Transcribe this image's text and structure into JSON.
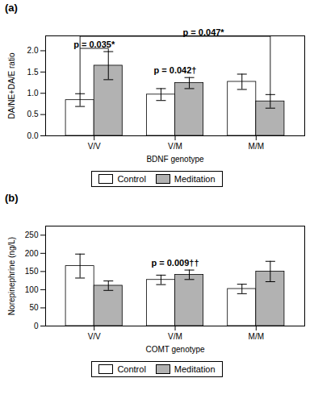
{
  "chart_data": [
    {
      "type": "bar",
      "title": "(a)",
      "xlabel": "BDNF genotype",
      "ylabel": "DA/NE+DA/E ratio",
      "categories": [
        "V/V",
        "V/M",
        "M/M"
      ],
      "series": [
        {
          "name": "Control",
          "color": "#ffffff",
          "values": [
            0.84,
            0.97,
            1.27
          ],
          "errors": [
            0.15,
            0.14,
            0.18
          ]
        },
        {
          "name": "Meditation",
          "color": "#b2b2b2",
          "values": [
            1.65,
            1.24,
            0.81
          ],
          "errors": [
            0.33,
            0.13,
            0.16
          ]
        }
      ],
      "ylim": [
        0,
        2.35
      ],
      "yticks": [
        {
          "value": 0,
          "label": "0.0"
        },
        {
          "value": 0.5,
          "label": "0.5"
        },
        {
          "value": 1,
          "label": "1.0"
        },
        {
          "value": 1.5,
          "label": "1.5"
        },
        {
          "value": 2,
          "label": "2.0"
        }
      ],
      "annotations": [
        "p = 0.042†",
        "p = 0.035*",
        "p = 0.047*"
      ],
      "legend": "bottom",
      "grid": false
    },
    {
      "type": "bar",
      "title": "(b)",
      "xlabel": "COMT genotype",
      "ylabel": "Norepinephrine (ng/L)",
      "categories": [
        "V/V",
        "V/M",
        "M/M"
      ],
      "series": [
        {
          "name": "Control",
          "color": "#ffffff",
          "values": [
            165,
            127,
            102
          ],
          "errors": [
            33,
            13,
            13
          ]
        },
        {
          "name": "Meditation",
          "color": "#b2b2b2",
          "values": [
            111,
            141,
            150
          ],
          "errors": [
            13,
            13,
            28
          ]
        }
      ],
      "ylim": [
        0,
        275
      ],
      "yticks": [
        0,
        50,
        100,
        150,
        200,
        250
      ],
      "annotations": [
        "p = 0.009††"
      ],
      "legend": "bottom",
      "grid": false
    }
  ]
}
